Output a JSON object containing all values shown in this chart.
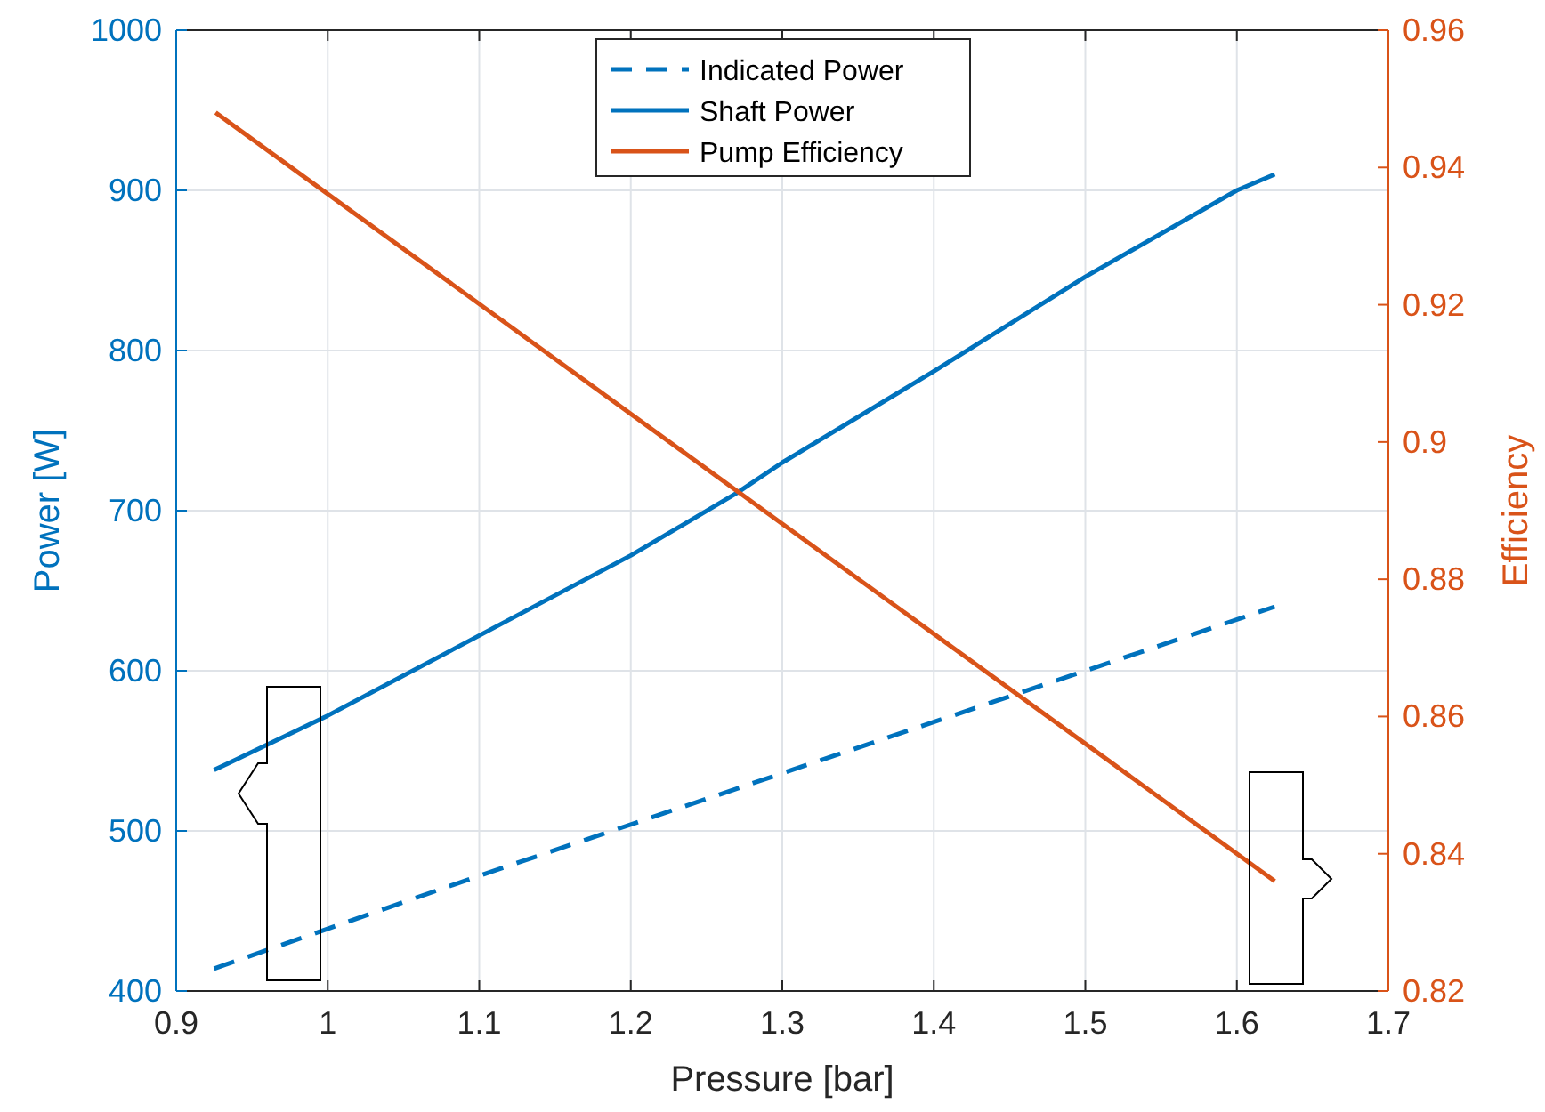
{
  "chart_data": {
    "type": "line",
    "xlabel": "Pressure [bar]",
    "ylabel": "Power [W]",
    "y2label": "Efficiency",
    "xlim": [
      0.9,
      1.7
    ],
    "xticks": [
      0.9,
      1,
      1.1,
      1.2,
      1.3,
      1.4,
      1.5,
      1.6,
      1.7
    ],
    "ylim": [
      400,
      1000
    ],
    "yticks": [
      400,
      500,
      600,
      700,
      800,
      900,
      1000
    ],
    "y2lim": [
      0.82,
      0.96
    ],
    "y2ticks": [
      0.82,
      0.84,
      0.86,
      0.88,
      0.9,
      0.92,
      0.94,
      0.96
    ],
    "grid": true,
    "legend": "top",
    "line_style": "solid",
    "series": [
      {
        "name": "Indicated Power",
        "color": "#0072bd",
        "line_style": "dashed",
        "x": [
          0.925,
          1.1,
          1.3,
          1.625
        ],
        "values": [
          414,
          472,
          536,
          640
        ]
      },
      {
        "name": "Shaft Power",
        "color": "#0072bd",
        "x": [
          0.925,
          1.0,
          1.1,
          1.2,
          1.27,
          1.3,
          1.4,
          1.5,
          1.6,
          1.625
        ],
        "values": [
          538,
          572,
          622,
          672,
          711,
          730,
          787,
          846,
          900,
          910
        ]
      },
      {
        "name": "Pump Efficiency",
        "color": "#d95319",
        "axis": "y2",
        "x": [
          0.926,
          1.625
        ],
        "values": [
          0.948,
          0.836
        ]
      }
    ]
  }
}
